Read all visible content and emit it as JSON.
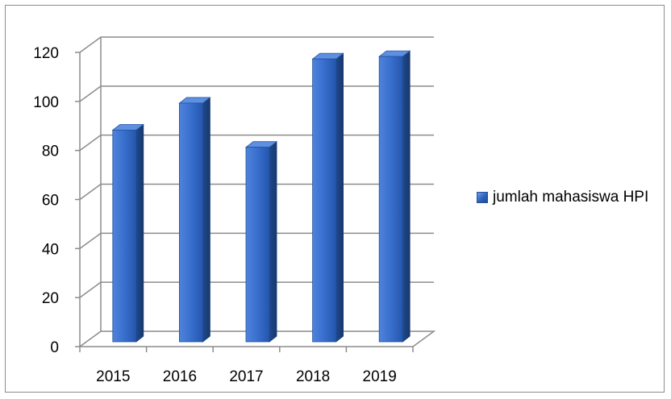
{
  "chart_data": {
    "type": "bar",
    "title": "",
    "xlabel": "",
    "ylabel": "",
    "categories": [
      "2015",
      "2016",
      "2017",
      "2018",
      "2019"
    ],
    "series": [
      {
        "name": "jumlah mahasiswa HPI",
        "values": [
          87,
          98,
          80,
          116,
          117
        ]
      }
    ],
    "ylim": [
      0,
      120
    ],
    "yticks": [
      "0",
      "20",
      "40",
      "60",
      "80",
      "100",
      "120"
    ],
    "grid": true,
    "legend_position": "right",
    "style": "3d-column",
    "colors": {
      "bar_front": "#2f67c4",
      "bar_side": "#1e4786",
      "bar_top": "#5e8fe0",
      "grid": "#8c8c8c"
    }
  }
}
